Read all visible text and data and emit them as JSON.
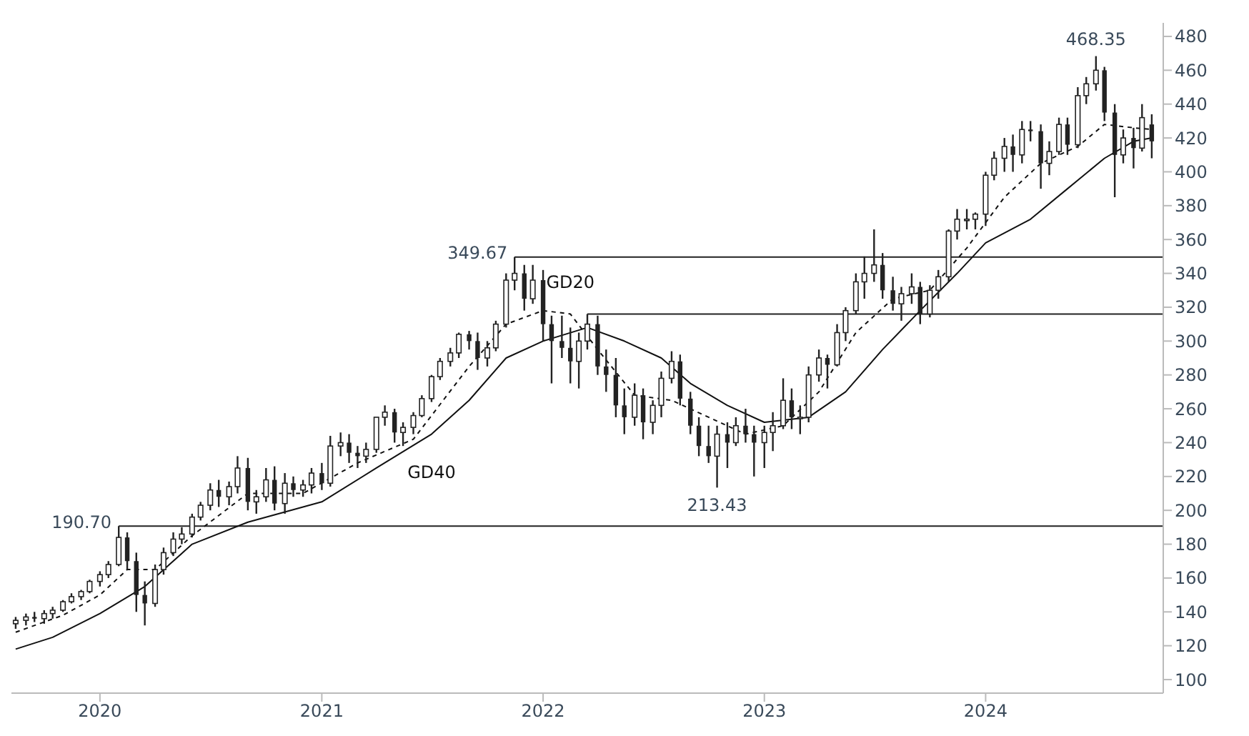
{
  "chart_data": {
    "type": "candlestick",
    "x": [
      "2019-08-15",
      "2019-09-01",
      "2019-09-15",
      "2019-10-01",
      "2019-10-15",
      "2019-11-01",
      "2019-11-15",
      "2019-12-01",
      "2019-12-15",
      "2020-01-01",
      "2020-01-15",
      "2020-02-01",
      "2020-02-15",
      "2020-03-01",
      "2020-03-15",
      "2020-04-01",
      "2020-04-15",
      "2020-05-01",
      "2020-05-15",
      "2020-06-01",
      "2020-06-15",
      "2020-07-01",
      "2020-07-15",
      "2020-08-01",
      "2020-08-15",
      "2020-09-01",
      "2020-09-15",
      "2020-10-01",
      "2020-10-15",
      "2020-11-01",
      "2020-11-15",
      "2020-12-01",
      "2020-12-15",
      "2021-01-01",
      "2021-01-15",
      "2021-02-01",
      "2021-02-15",
      "2021-03-01",
      "2021-03-15",
      "2021-04-01",
      "2021-04-15",
      "2021-05-01",
      "2021-05-15",
      "2021-06-01",
      "2021-06-15",
      "2021-07-01",
      "2021-07-15",
      "2021-08-01",
      "2021-08-15",
      "2021-09-01",
      "2021-09-15",
      "2021-10-01",
      "2021-10-15",
      "2021-11-01",
      "2021-11-15",
      "2021-12-01",
      "2021-12-15",
      "2022-01-01",
      "2022-01-15",
      "2022-02-01",
      "2022-02-15",
      "2022-03-01",
      "2022-03-15",
      "2022-04-01",
      "2022-04-15",
      "2022-05-01",
      "2022-05-15",
      "2022-06-01",
      "2022-06-15",
      "2022-07-01",
      "2022-07-15",
      "2022-08-01",
      "2022-08-15",
      "2022-09-01",
      "2022-09-15",
      "2022-10-01",
      "2022-10-15",
      "2022-11-01",
      "2022-11-15",
      "2022-12-01",
      "2022-12-15",
      "2023-01-01",
      "2023-01-15",
      "2023-02-01",
      "2023-02-15",
      "2023-03-01",
      "2023-03-15",
      "2023-04-01",
      "2023-04-15",
      "2023-05-01",
      "2023-05-15",
      "2023-06-01",
      "2023-06-15",
      "2023-07-01",
      "2023-07-15",
      "2023-08-01",
      "2023-08-15",
      "2023-09-01",
      "2023-09-15",
      "2023-10-01",
      "2023-10-15",
      "2023-11-01",
      "2023-11-15",
      "2023-12-01",
      "2023-12-15",
      "2024-01-01",
      "2024-01-15",
      "2024-02-01",
      "2024-02-15",
      "2024-03-01",
      "2024-03-15",
      "2024-04-01",
      "2024-04-15",
      "2024-05-01",
      "2024-05-15",
      "2024-06-01",
      "2024-06-15",
      "2024-07-01",
      "2024-07-15",
      "2024-08-01",
      "2024-08-15",
      "2024-09-01",
      "2024-09-15",
      "2024-10-01"
    ],
    "ohlc": [
      [
        133,
        137,
        130,
        135
      ],
      [
        135,
        139,
        132,
        137
      ],
      [
        137,
        140,
        134,
        136
      ],
      [
        136,
        141,
        133,
        139
      ],
      [
        139,
        143,
        136,
        141
      ],
      [
        141,
        147,
        140,
        146
      ],
      [
        146,
        151,
        145,
        149
      ],
      [
        149,
        153,
        147,
        152
      ],
      [
        152,
        159,
        151,
        158
      ],
      [
        158,
        164,
        155,
        162
      ],
      [
        162,
        170,
        160,
        168
      ],
      [
        168,
        190.7,
        167,
        184
      ],
      [
        184,
        187,
        165,
        170
      ],
      [
        170,
        175,
        140,
        150
      ],
      [
        150,
        158,
        132,
        145
      ],
      [
        145,
        168,
        143,
        165
      ],
      [
        165,
        178,
        162,
        175
      ],
      [
        175,
        187,
        173,
        183
      ],
      [
        183,
        190,
        180,
        186
      ],
      [
        186,
        198,
        184,
        196
      ],
      [
        196,
        205,
        194,
        203
      ],
      [
        203,
        216,
        200,
        212
      ],
      [
        212,
        218,
        202,
        208
      ],
      [
        208,
        217,
        203,
        214
      ],
      [
        214,
        232,
        210,
        225
      ],
      [
        225,
        231,
        200,
        205
      ],
      [
        205,
        212,
        198,
        208
      ],
      [
        208,
        225,
        205,
        218
      ],
      [
        218,
        226,
        200,
        204
      ],
      [
        204,
        222,
        198,
        216
      ],
      [
        216,
        220,
        208,
        212
      ],
      [
        212,
        218,
        208,
        215
      ],
      [
        215,
        225,
        210,
        222
      ],
      [
        222,
        228,
        212,
        216
      ],
      [
        216,
        244,
        214,
        238
      ],
      [
        238,
        246,
        232,
        240
      ],
      [
        240,
        245,
        228,
        234
      ],
      [
        234,
        238,
        225,
        232
      ],
      [
        232,
        240,
        228,
        236
      ],
      [
        236,
        255,
        234,
        255
      ],
      [
        255,
        262,
        250,
        258
      ],
      [
        258,
        260,
        240,
        246
      ],
      [
        246,
        252,
        238,
        249
      ],
      [
        249,
        258,
        245,
        256
      ],
      [
        256,
        268,
        255,
        266
      ],
      [
        266,
        280,
        264,
        279
      ],
      [
        279,
        290,
        277,
        288
      ],
      [
        288,
        296,
        285,
        293
      ],
      [
        293,
        305,
        290,
        304
      ],
      [
        304,
        306,
        295,
        300
      ],
      [
        300,
        305,
        283,
        290
      ],
      [
        290,
        300,
        285,
        296
      ],
      [
        296,
        312,
        294,
        310
      ],
      [
        310,
        340,
        308,
        336
      ],
      [
        336,
        349.67,
        330,
        340
      ],
      [
        340,
        345,
        318,
        325
      ],
      [
        325,
        345,
        322,
        336
      ],
      [
        336,
        342,
        300,
        310
      ],
      [
        310,
        315,
        275,
        300
      ],
      [
        300,
        315,
        290,
        296
      ],
      [
        296,
        308,
        275,
        288
      ],
      [
        288,
        305,
        272,
        300
      ],
      [
        300,
        316,
        295,
        310
      ],
      [
        310,
        315,
        280,
        285
      ],
      [
        285,
        295,
        270,
        280
      ],
      [
        280,
        290,
        255,
        262
      ],
      [
        262,
        272,
        245,
        255
      ],
      [
        255,
        275,
        250,
        268
      ],
      [
        268,
        272,
        242,
        252
      ],
      [
        252,
        265,
        245,
        262
      ],
      [
        262,
        282,
        255,
        278
      ],
      [
        278,
        294,
        275,
        288
      ],
      [
        288,
        292,
        262,
        266
      ],
      [
        266,
        270,
        245,
        250
      ],
      [
        250,
        255,
        232,
        238
      ],
      [
        238,
        250,
        228,
        232
      ],
      [
        232,
        250,
        213.43,
        245
      ],
      [
        245,
        252,
        225,
        240
      ],
      [
        240,
        255,
        238,
        250
      ],
      [
        250,
        260,
        240,
        245
      ],
      [
        245,
        250,
        220,
        240
      ],
      [
        240,
        250,
        225,
        246
      ],
      [
        246,
        258,
        235,
        250
      ],
      [
        250,
        278,
        248,
        265
      ],
      [
        265,
        272,
        248,
        255
      ],
      [
        255,
        262,
        245,
        255
      ],
      [
        255,
        285,
        252,
        280
      ],
      [
        280,
        295,
        276,
        290
      ],
      [
        290,
        292,
        272,
        286
      ],
      [
        286,
        310,
        285,
        305
      ],
      [
        305,
        320,
        300,
        318
      ],
      [
        318,
        340,
        316,
        335
      ],
      [
        335,
        350,
        325,
        340
      ],
      [
        340,
        366,
        335,
        345
      ],
      [
        345,
        352,
        325,
        330
      ],
      [
        330,
        338,
        318,
        322
      ],
      [
        322,
        332,
        312,
        328
      ],
      [
        328,
        340,
        322,
        332
      ],
      [
        332,
        335,
        310,
        316
      ],
      [
        316,
        333,
        314,
        330
      ],
      [
        330,
        342,
        325,
        338
      ],
      [
        338,
        366,
        335,
        365
      ],
      [
        365,
        378,
        360,
        372
      ],
      [
        372,
        378,
        366,
        372
      ],
      [
        372,
        376,
        366,
        375
      ],
      [
        375,
        400,
        368,
        398
      ],
      [
        398,
        412,
        395,
        408
      ],
      [
        408,
        420,
        400,
        415
      ],
      [
        415,
        422,
        400,
        410
      ],
      [
        410,
        430,
        405,
        425
      ],
      [
        425,
        430,
        418,
        424
      ],
      [
        424,
        428,
        390,
        405
      ],
      [
        405,
        418,
        398,
        412
      ],
      [
        412,
        432,
        410,
        428
      ],
      [
        428,
        432,
        410,
        416
      ],
      [
        416,
        450,
        414,
        445
      ],
      [
        445,
        456,
        440,
        452
      ],
      [
        452,
        468.35,
        448,
        460
      ],
      [
        460,
        462,
        430,
        435
      ],
      [
        435,
        440,
        385,
        410
      ],
      [
        410,
        425,
        405,
        420
      ],
      [
        420,
        426,
        402,
        414
      ],
      [
        414,
        440,
        412,
        432
      ],
      [
        428,
        434,
        408,
        418
      ]
    ],
    "color": "#222222",
    "series": [
      {
        "type": "line",
        "name": "GD20",
        "color": "#111111",
        "line_style": "dashed",
        "x": [
          "2019-08-15",
          "2019-11-01",
          "2020-01-01",
          "2020-02-15",
          "2020-04-01",
          "2020-06-01",
          "2020-09-01",
          "2020-12-01",
          "2021-03-01",
          "2021-06-01",
          "2021-09-01",
          "2021-11-01",
          "2022-01-01",
          "2022-02-15",
          "2022-04-01",
          "2022-06-01",
          "2022-08-01",
          "2022-10-01",
          "2022-12-01",
          "2023-02-01",
          "2023-04-01",
          "2023-06-01",
          "2023-08-01",
          "2023-10-01",
          "2023-12-01",
          "2024-02-01",
          "2024-04-01",
          "2024-06-01",
          "2024-07-15",
          "2024-09-01",
          "2024-10-01"
        ],
        "values": [
          128,
          138,
          150,
          165,
          165,
          185,
          210,
          210,
          228,
          242,
          285,
          310,
          318,
          316,
          295,
          268,
          265,
          255,
          245,
          250,
          270,
          305,
          325,
          330,
          355,
          385,
          405,
          415,
          428,
          426,
          425
        ]
      },
      {
        "type": "line",
        "name": "GD40",
        "color": "#111111",
        "line_style": "solid",
        "x": [
          "2019-08-15",
          "2019-10-15",
          "2020-01-01",
          "2020-03-15",
          "2020-06-01",
          "2020-09-01",
          "2021-01-01",
          "2021-04-01",
          "2021-07-01",
          "2021-09-01",
          "2021-11-01",
          "2022-01-01",
          "2022-03-15",
          "2022-05-15",
          "2022-07-15",
          "2022-09-01",
          "2022-11-01",
          "2023-01-01",
          "2023-03-15",
          "2023-05-15",
          "2023-07-15",
          "2023-09-15",
          "2023-11-15",
          "2024-01-01",
          "2024-03-15",
          "2024-05-15",
          "2024-07-15",
          "2024-09-01",
          "2024-10-01"
        ],
        "values": [
          118,
          125,
          139,
          155,
          180,
          193,
          205,
          225,
          245,
          265,
          290,
          300,
          308,
          300,
          290,
          275,
          262,
          252,
          255,
          270,
          295,
          318,
          340,
          358,
          372,
          390,
          408,
          418,
          420
        ]
      }
    ],
    "xlim": [
      "2019-08-08",
      "2024-10-20"
    ],
    "xticks": [
      {
        "value": "2020-01-01",
        "label": "2020"
      },
      {
        "value": "2021-01-01",
        "label": "2021"
      },
      {
        "value": "2022-01-01",
        "label": "2022"
      },
      {
        "value": "2023-01-01",
        "label": "2023"
      },
      {
        "value": "2024-01-01",
        "label": "2024"
      }
    ],
    "ylim": [
      92,
      488
    ],
    "yticks": [
      100,
      120,
      140,
      160,
      180,
      200,
      220,
      240,
      260,
      280,
      300,
      320,
      340,
      360,
      380,
      400,
      420,
      440,
      460,
      480
    ],
    "ref_lines": [
      {
        "axis": "y",
        "value": 349.67,
        "label": "349.67",
        "color": "#222222"
      },
      {
        "axis": "y",
        "value": 316,
        "label": null,
        "color": "#222222"
      },
      {
        "axis": "y",
        "value": 190.7,
        "label": "190.70",
        "color": "#222222"
      }
    ],
    "annotations": [
      {
        "text": "468.35",
        "x": "2024-07-01",
        "y": 468.35
      },
      {
        "text": "213.43",
        "x": "2022-10-15",
        "y": 213.43
      }
    ]
  }
}
